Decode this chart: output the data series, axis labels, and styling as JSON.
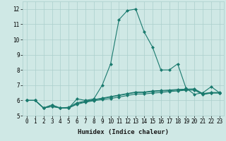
{
  "xlabel": "Humidex (Indice chaleur)",
  "x_values": [
    0,
    1,
    2,
    3,
    4,
    5,
    6,
    7,
    8,
    9,
    10,
    11,
    12,
    13,
    14,
    15,
    16,
    17,
    18,
    19,
    20,
    21,
    22,
    23
  ],
  "line1": [
    6.0,
    6.0,
    5.5,
    5.7,
    5.5,
    5.5,
    6.1,
    6.0,
    6.1,
    7.0,
    8.4,
    11.3,
    11.9,
    12.0,
    10.5,
    9.5,
    8.0,
    8.0,
    8.4,
    6.8,
    6.4,
    6.5,
    6.9,
    6.5
  ],
  "line2": [
    6.0,
    6.0,
    5.5,
    5.7,
    5.5,
    5.55,
    5.85,
    5.95,
    6.05,
    6.15,
    6.25,
    6.35,
    6.45,
    6.55,
    6.55,
    6.62,
    6.65,
    6.68,
    6.72,
    6.74,
    6.76,
    6.45,
    6.52,
    6.52
  ],
  "line3": [
    6.0,
    6.0,
    5.5,
    5.6,
    5.5,
    5.5,
    5.8,
    5.92,
    6.02,
    6.12,
    6.22,
    6.32,
    6.42,
    6.52,
    6.52,
    6.58,
    6.62,
    6.64,
    6.68,
    6.7,
    6.72,
    6.42,
    6.5,
    6.5
  ],
  "line4": [
    6.0,
    6.0,
    5.5,
    5.6,
    5.5,
    5.5,
    5.75,
    5.88,
    5.98,
    6.05,
    6.12,
    6.22,
    6.32,
    6.42,
    6.42,
    6.48,
    6.52,
    6.58,
    6.62,
    6.67,
    6.68,
    6.38,
    6.48,
    6.48
  ],
  "line_color": "#1a7a6e",
  "bg_color": "#cfe8e5",
  "grid_color": "#aacfcc",
  "ylim": [
    5.0,
    12.5
  ],
  "yticks": [
    5,
    6,
    7,
    8,
    9,
    10,
    11,
    12
  ],
  "xticks": [
    0,
    1,
    2,
    3,
    4,
    5,
    6,
    7,
    8,
    9,
    10,
    11,
    12,
    13,
    14,
    15,
    16,
    17,
    18,
    19,
    20,
    21,
    22,
    23
  ],
  "xlabel_fontsize": 6.5,
  "tick_fontsize": 5.5,
  "marker": "D",
  "marker_size": 2.0,
  "linewidth": 0.8
}
